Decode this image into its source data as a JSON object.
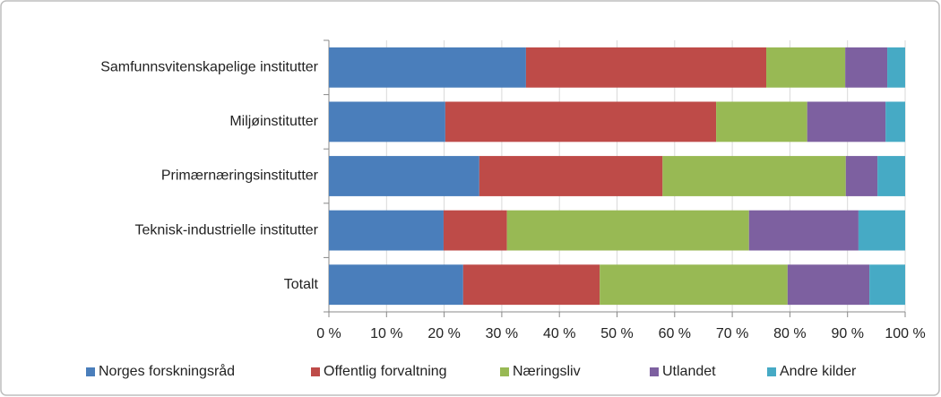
{
  "chart_data": {
    "type": "stacked_barh",
    "categories": [
      "Samfunnsvitenskapelige institutter",
      "Miljøinstitutter",
      "Primærnæringsinstitutter",
      "Teknisk-industrielle institutter",
      "Totalt"
    ],
    "series": [
      {
        "name": "Norges forskningsråd",
        "color": "#4a7ebb",
        "values": [
          34.2,
          20.2,
          26.1,
          19.9,
          23.3
        ]
      },
      {
        "name": "Offentlig forvaltning",
        "color": "#be4b48",
        "values": [
          41.7,
          47.0,
          31.8,
          11.0,
          23.7
        ]
      },
      {
        "name": "Næringsliv",
        "color": "#98b954",
        "values": [
          13.7,
          15.8,
          31.8,
          42.0,
          32.6
        ]
      },
      {
        "name": "Utlandet",
        "color": "#7d60a0",
        "values": [
          7.3,
          13.6,
          5.5,
          19.0,
          14.2
        ]
      },
      {
        "name": "Andre kilder",
        "color": "#46aac5",
        "values": [
          3.1,
          3.4,
          4.8,
          8.1,
          6.2
        ]
      }
    ],
    "xlim": [
      0,
      100
    ],
    "xticks": [
      {
        "value": 0,
        "label": "0 %"
      },
      {
        "value": 10,
        "label": "10 %"
      },
      {
        "value": 20,
        "label": "20 %"
      },
      {
        "value": 30,
        "label": "30 %"
      },
      {
        "value": 40,
        "label": "40 %"
      },
      {
        "value": 50,
        "label": "50 %"
      },
      {
        "value": 60,
        "label": "60 %"
      },
      {
        "value": 70,
        "label": "70 %"
      },
      {
        "value": 80,
        "label": "80 %"
      },
      {
        "value": 90,
        "label": "90 %"
      },
      {
        "value": 100,
        "label": "100 %"
      }
    ],
    "grid": true,
    "legend": "bottom"
  }
}
